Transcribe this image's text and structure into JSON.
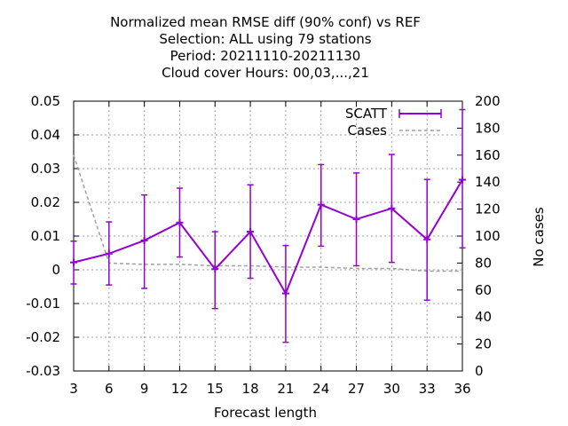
{
  "chart_data": {
    "type": "line",
    "title_lines": [
      "Normalized mean RMSE diff (90% conf) vs REF",
      "Selection: ALL using    79 stations",
      "Period: 20211110-20211130",
      "Cloud cover   Hours:  00,03,...,21"
    ],
    "xlabel": "Forecast length",
    "ylabel": "",
    "y2label": "No cases",
    "x": [
      3,
      6,
      9,
      12,
      15,
      18,
      21,
      24,
      27,
      30,
      33,
      36
    ],
    "xlim": [
      3,
      36
    ],
    "ylim": [
      -0.03,
      0.05
    ],
    "y2lim": [
      0,
      200
    ],
    "x_ticks": [
      "3",
      "6",
      "9",
      "12",
      "15",
      "18",
      "21",
      "24",
      "27",
      "30",
      "33",
      "36"
    ],
    "y_ticks": [
      "-0.03",
      "-0.02",
      "-0.01",
      "0",
      "0.01",
      "0.02",
      "0.03",
      "0.04",
      "0.05"
    ],
    "y2_ticks": [
      "0",
      "20",
      "40",
      "60",
      "80",
      "100",
      "120",
      "140",
      "160",
      "180",
      "200"
    ],
    "grid": true,
    "legend_position": "top-right",
    "series": [
      {
        "name": "SCATT",
        "axis": "left",
        "color": "#9400d3",
        "values": [
          0.0022,
          0.0048,
          0.0087,
          0.014,
          0.0002,
          0.0113,
          -0.007,
          0.0193,
          0.015,
          0.0182,
          0.009,
          0.0267
        ],
        "error_low": [
          -0.0042,
          -0.0045,
          -0.0055,
          0.0038,
          -0.0115,
          -0.0025,
          -0.0215,
          0.007,
          0.0012,
          0.0022,
          -0.009,
          0.0065
        ],
        "error_high": [
          0.0085,
          0.0142,
          0.0222,
          0.0242,
          0.0113,
          0.0252,
          0.0072,
          0.0312,
          0.0287,
          0.0342,
          0.0268,
          0.0475
        ]
      },
      {
        "name": "Cases",
        "axis": "right",
        "color": "#a0a0a0",
        "values": [
          160,
          80,
          79,
          79,
          78,
          78,
          77,
          77,
          76,
          76,
          74,
          74
        ]
      }
    ]
  }
}
